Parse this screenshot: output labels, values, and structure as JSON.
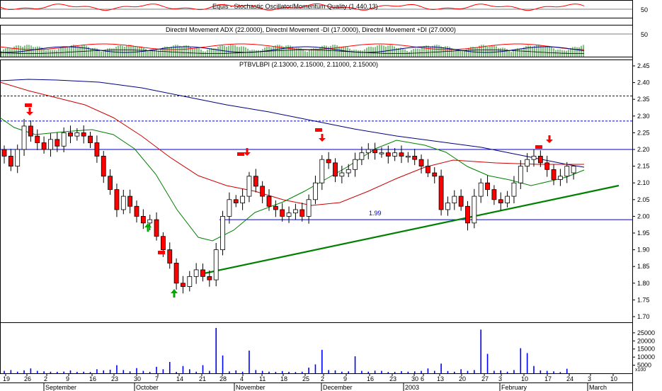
{
  "panels": {
    "stochastic": {
      "title": "Equis - Stochastic Oscillator/Momentum Quality (1,440.13)",
      "right_tick": "50"
    },
    "dmi": {
      "title": "Directnl Movement ADX (22.0000), Directnl Movement -DI (17.0000), Directnl Movement +DI (27.0000)",
      "right_tick": "50"
    },
    "price": {
      "title": "PTBVLBPI (2.13000, 2.15000, 2.11000, 2.15000)",
      "support_label": "1.99"
    },
    "volume": {
      "multiplier_label": "x100"
    }
  },
  "chart_data": {
    "type": "candlestick",
    "symbol": "PTBVLBPI",
    "last": {
      "open": 2.13,
      "high": 2.15,
      "low": 2.11,
      "close": 2.15
    },
    "price_axis": {
      "ylim": [
        1.7,
        2.45
      ],
      "ticks": [
        "2.45",
        "2.40",
        "2.35",
        "2.30",
        "2.25",
        "2.20",
        "2.15",
        "2.10",
        "2.05",
        "2.00",
        "1.95",
        "1.90",
        "1.85",
        "1.80",
        "1.75",
        "1.70"
      ]
    },
    "volume_axis": {
      "ticks": [
        "25000",
        "20000",
        "15000",
        "10000",
        "5000"
      ]
    },
    "x_axis": {
      "day_ticks": [
        "19",
        "26",
        "2",
        "9",
        "16",
        "23",
        "30",
        "7",
        "14",
        "21",
        "28",
        "4",
        "11",
        "18",
        "25",
        "2",
        "9",
        "16",
        "23",
        "30",
        "6",
        "13",
        "20",
        "27",
        "3",
        "10",
        "17",
        "24",
        "3",
        "10"
      ],
      "months": [
        "September",
        "October",
        "November",
        "December",
        "2003",
        "February",
        "March"
      ]
    },
    "horizontal_lines": [
      {
        "value": 2.36,
        "style": "dotted",
        "color": "#0000cc"
      },
      {
        "value": 2.285,
        "style": "dotted",
        "color": "#0000cc"
      },
      {
        "value": 2.2,
        "style": "solid",
        "color": "#0000cc"
      },
      {
        "value": 1.99,
        "style": "solid",
        "color": "#0000cc",
        "label": "1.99"
      }
    ],
    "colors": {
      "up": "#ffffff",
      "down": "#ff0000",
      "ma_long": "#000080",
      "ma_mid": "#cc0000",
      "ma_short": "#008000",
      "trendline": "#008000",
      "volume": "#0000ff"
    },
    "closes": [
      2.18,
      2.15,
      2.2,
      2.27,
      2.24,
      2.22,
      2.2,
      2.23,
      2.21,
      2.25,
      2.24,
      2.25,
      2.24,
      2.22,
      2.18,
      2.12,
      2.08,
      2.02,
      2.06,
      2.03,
      2.0,
      1.98,
      1.99,
      1.94,
      1.9,
      1.86,
      1.8,
      1.79,
      1.82,
      1.84,
      1.82,
      1.81,
      1.9,
      2.0,
      2.05,
      2.04,
      2.06,
      2.12,
      2.09,
      2.06,
      2.03,
      2.02,
      2.0,
      2.01,
      2.02,
      2.0,
      2.05,
      2.1,
      2.17,
      2.16,
      2.12,
      2.13,
      2.14,
      2.17,
      2.19,
      2.2,
      2.19,
      2.19,
      2.18,
      2.19,
      2.18,
      2.18,
      2.17,
      2.15,
      2.13,
      2.12,
      2.02,
      2.04,
      2.06,
      2.03,
      1.98,
      2.06,
      2.1,
      2.08,
      2.05,
      2.04,
      2.06,
      2.1,
      2.15,
      2.17,
      2.18,
      2.16,
      2.14,
      2.11,
      2.12,
      2.15
    ],
    "volumes": [
      1500,
      2000,
      1000,
      1800,
      3000,
      1500,
      1200,
      1000,
      900,
      1100,
      1800,
      900,
      1000,
      800,
      2500,
      1800,
      2200,
      5000,
      2000,
      1200,
      3200,
      1500,
      900,
      4000,
      2500,
      7000,
      900,
      4500,
      2500,
      1000,
      5000,
      1500,
      28000,
      11000,
      1200,
      1800,
      1000,
      14000,
      2000,
      1500,
      1000,
      900,
      1400,
      900,
      800,
      1000,
      3500,
      5500,
      14500,
      2000,
      1800,
      1000,
      1200,
      10500,
      1500,
      1000,
      1600,
      1500,
      800,
      900,
      1300,
      1000,
      1200,
      1500,
      3000,
      1500,
      6000,
      1400,
      1000,
      2500,
      1500,
      2000,
      27000,
      12000,
      1500,
      1800,
      1000,
      2000,
      15500,
      12500,
      4500,
      1800,
      1500,
      1200,
      800,
      2800
    ]
  }
}
